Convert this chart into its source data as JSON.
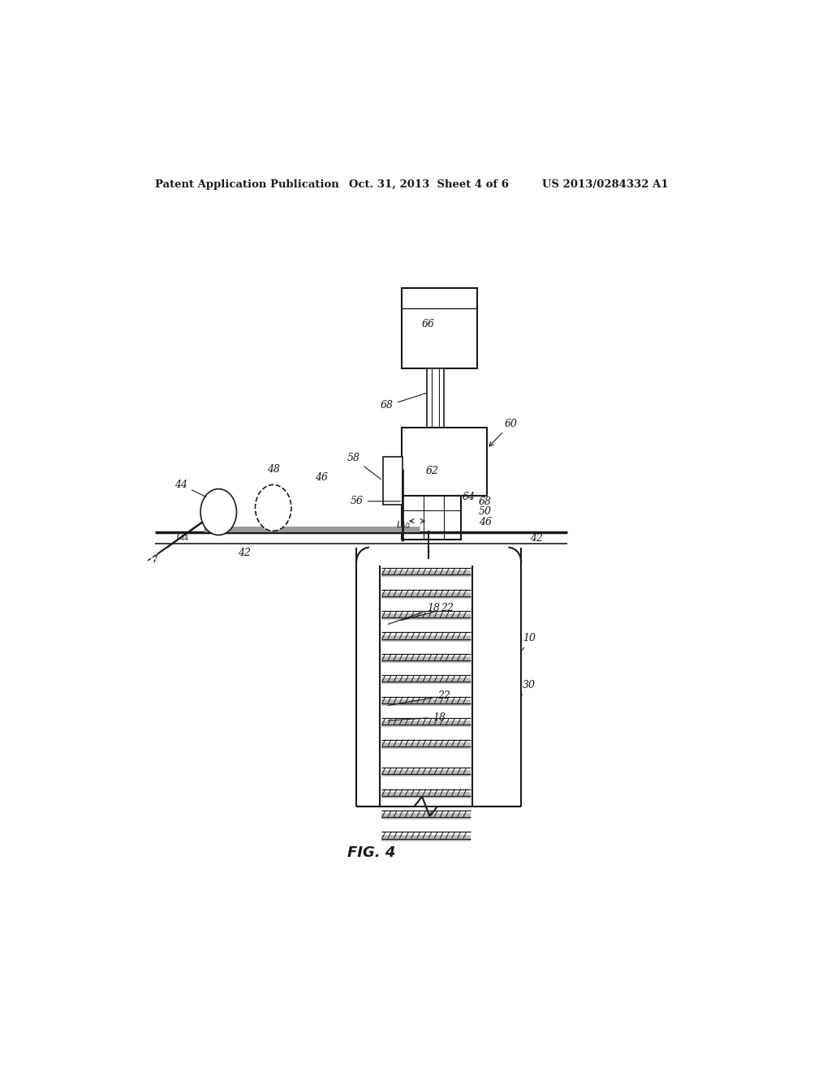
{
  "bg_color": "#ffffff",
  "line_color": "#1a1a1a",
  "header_left": "Patent Application Publication",
  "header_mid": "Oct. 31, 2013  Sheet 4 of 6",
  "header_right": "US 2013/0284332 A1",
  "fig_label": "FIG. 4"
}
